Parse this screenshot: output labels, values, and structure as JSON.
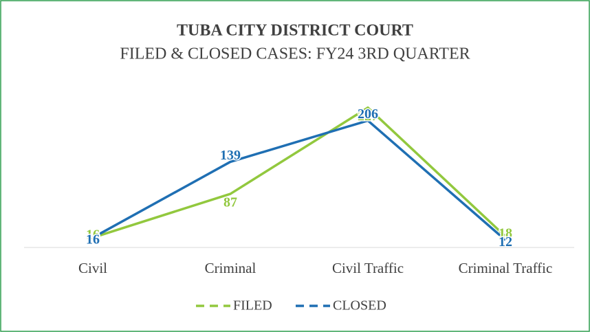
{
  "chart_data": {
    "type": "line",
    "title": "TUBA CITY DISTRICT COURT",
    "subtitle": "FILED & CLOSED CASES: FY24 3RD QUARTER",
    "categories": [
      "Civil",
      "Criminal",
      "Civil Traffic",
      "Criminal Traffic"
    ],
    "series": [
      {
        "name": "FILED",
        "color": "#92c83e",
        "values": [
          16,
          87,
          227,
          18
        ]
      },
      {
        "name": "CLOSED",
        "color": "#1f6fb3",
        "values": [
          16,
          139,
          206,
          12
        ]
      }
    ],
    "ylim": [
      0,
      250
    ],
    "legend": "bottom"
  }
}
